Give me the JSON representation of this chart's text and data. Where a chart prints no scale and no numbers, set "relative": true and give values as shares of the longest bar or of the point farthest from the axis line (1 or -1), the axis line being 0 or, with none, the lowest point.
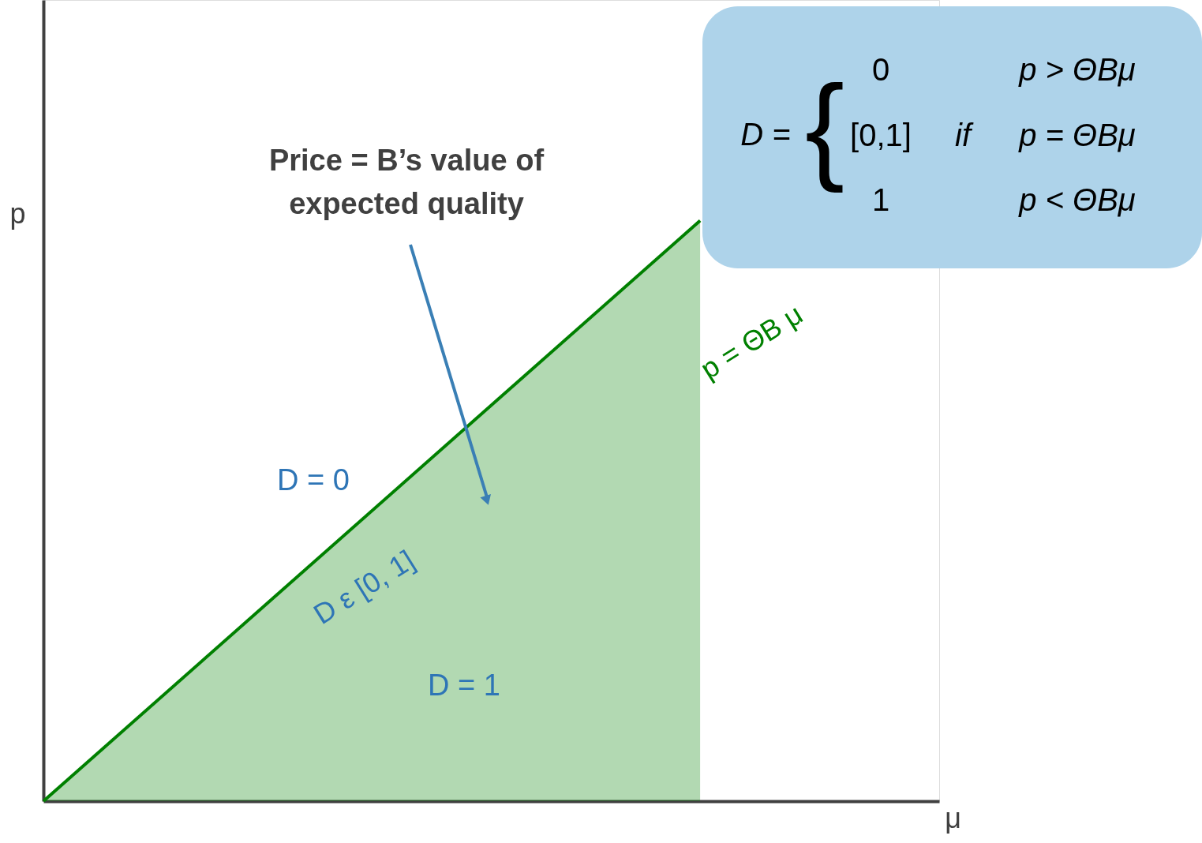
{
  "chart_data": {
    "type": "area",
    "relative": true,
    "xlabel": "μ",
    "ylabel": "p",
    "categories": [
      null,
      null
    ],
    "series": [
      {
        "name": "p = ΘB μ",
        "color": "#008000",
        "values": [
          0,
          1
        ]
      }
    ],
    "annotations": [
      "Price = B’s value of\nexpected quality",
      "D = 0",
      "D ε [0, 1]",
      "D = 1",
      "D =",
      "{",
      "0",
      "[0,1]",
      "1",
      "if",
      "p > ΘBμ",
      "p = ΘBμ",
      "p < ΘBμ"
    ],
    "grid": false
  }
}
